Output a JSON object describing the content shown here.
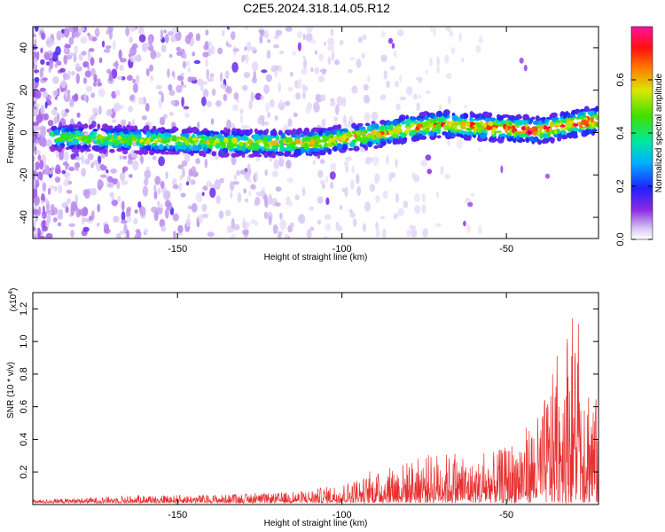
{
  "title": "C2E5.2024.318.14.05.R12",
  "chart_data": [
    {
      "type": "heatmap",
      "xlabel": "Height of straight line (km)",
      "ylabel": "Frequency (Hz)",
      "xlim": [
        -194,
        -22
      ],
      "ylim": [
        -50,
        50
      ],
      "x_ticks": [
        -150,
        -100,
        -50
      ],
      "x_tick_labels": [
        "-150",
        "-100",
        "-50"
      ],
      "y_ticks": [
        -40,
        -20,
        0,
        20,
        40
      ],
      "y_tick_labels": [
        "-40",
        "-20",
        "0",
        "20",
        "40"
      ],
      "colorbar": {
        "label": "Normalized spectral amplitude",
        "range": [
          0,
          0.8
        ],
        "ticks": [
          0.0,
          0.2,
          0.4,
          0.6
        ],
        "tick_labels": [
          "0.0",
          "0.2",
          "0.4",
          "0.6"
        ]
      },
      "ridge": {
        "x": [
          -190,
          -170,
          -150,
          -130,
          -110,
          -100,
          -90,
          -80,
          -70,
          -60,
          -50,
          -40,
          -30,
          -22
        ],
        "frequency": [
          -2,
          -3,
          -4,
          -5,
          -5,
          -3,
          -1,
          2,
          4,
          3,
          2,
          1,
          4,
          6
        ]
      },
      "peak": {
        "x": -43,
        "frequency": 0,
        "amplitude": 0.8
      }
    },
    {
      "type": "line",
      "xlabel": "Height of straight line (km)",
      "ylabel": "SNR (10 * v/v)",
      "y_multiplier": "(x10",
      "y_multiplier_exp": "4",
      "xlim": [
        -194,
        -22
      ],
      "ylim": [
        0,
        1.3
      ],
      "x_ticks": [
        -150,
        -100,
        -50
      ],
      "x_tick_labels": [
        "-150",
        "-100",
        "-50"
      ],
      "y_ticks": [
        0.2,
        0.4,
        0.6,
        0.8,
        1.0,
        1.2
      ],
      "y_tick_labels": [
        "0.2",
        "0.4",
        "0.6",
        "0.8",
        "1.0",
        "1.2"
      ],
      "series": [
        {
          "color": "#e83030",
          "envelope_x": [
            -194,
            -180,
            -160,
            -140,
            -120,
            -110,
            -100,
            -90,
            -80,
            -70,
            -60,
            -50,
            -40,
            -35,
            -30,
            -26,
            -22
          ],
          "envelope_y": [
            0.02,
            0.03,
            0.05,
            0.05,
            0.06,
            0.08,
            0.12,
            0.18,
            0.26,
            0.32,
            0.25,
            0.35,
            0.55,
            0.85,
            1.2,
            0.9,
            0.6
          ]
        }
      ]
    }
  ]
}
